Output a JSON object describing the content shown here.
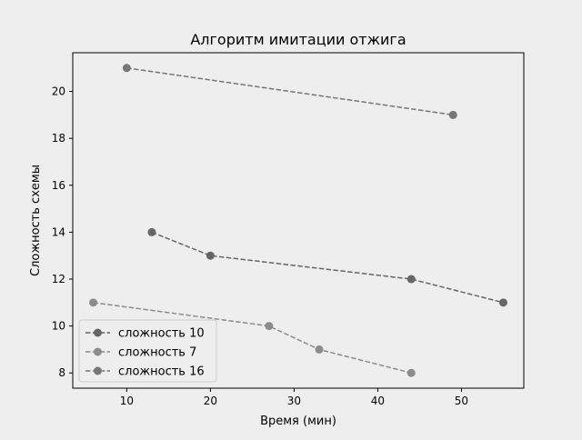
{
  "chart_data": {
    "type": "line",
    "title": "Алгоритм имитации отжига",
    "xlabel": "Время (мин)",
    "ylabel": "Сложность схемы",
    "xlim": [
      3.55,
      57.45
    ],
    "ylim": [
      7.35,
      21.65
    ],
    "xticks": [
      10,
      20,
      30,
      40,
      50
    ],
    "yticks": [
      8,
      10,
      12,
      14,
      16,
      18,
      20
    ],
    "grid": false,
    "legend_position": "lower-left",
    "series": [
      {
        "name": "сложность 10",
        "color": "#666666",
        "line_style": "dashed",
        "marker": "circle",
        "x": [
          13,
          20,
          44,
          55
        ],
        "y": [
          14,
          13,
          12,
          11
        ]
      },
      {
        "name": "сложность 7",
        "color": "#8c8c8c",
        "line_style": "dashed",
        "marker": "circle",
        "x": [
          6,
          27,
          33,
          44
        ],
        "y": [
          11,
          10,
          9,
          8
        ]
      },
      {
        "name": "сложность 16",
        "color": "#777777",
        "line_style": "dashed",
        "marker": "circle",
        "x": [
          10,
          49
        ],
        "y": [
          21,
          19
        ]
      }
    ]
  },
  "colors": {
    "figure_background": "#eeeeee",
    "axes_background": "#eeeeee",
    "axes_edge": "#000000"
  }
}
